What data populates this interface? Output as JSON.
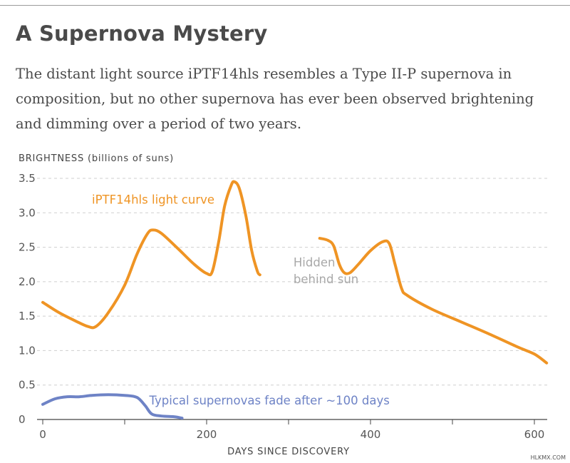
{
  "header": {
    "title": "A Supernova Mystery",
    "subtitle": "The distant light source iPTF14hls resembles a Type II-P supernova in composition, but no other supernova has ever been observed brightening and dimming over a period of two years."
  },
  "credit": "HLKMX.COM",
  "colors": {
    "orange": "#ef9424",
    "blue": "#6e83c6",
    "gray_annotation": "#a8a8a8",
    "axis": "#444444"
  },
  "chart_data": {
    "type": "line",
    "ylabel": "BRIGHTNESS (billions of suns)",
    "xlabel": "DAYS SINCE DISCOVERY",
    "xlim": [
      0,
      615
    ],
    "ylim": [
      0,
      3.5
    ],
    "xticks": [
      0,
      200,
      400,
      600
    ],
    "xminor": [
      100,
      300,
      500
    ],
    "yticks": [
      0,
      0.5,
      1.0,
      1.5,
      2.0,
      2.5,
      3.0,
      3.5
    ],
    "ytick_labels": [
      "0",
      "0.5",
      "1.0",
      "1.5",
      "2.0",
      "2.5",
      "3.0",
      "3.5"
    ],
    "grid": "horizontal-dashed",
    "series": [
      {
        "name": "iPTF14hls light curve",
        "color": "#ef9424",
        "segments": [
          [
            [
              0,
              1.7
            ],
            [
              20,
              1.55
            ],
            [
              40,
              1.43
            ],
            [
              55,
              1.35
            ],
            [
              65,
              1.35
            ],
            [
              80,
              1.55
            ],
            [
              100,
              1.95
            ],
            [
              115,
              2.4
            ],
            [
              128,
              2.7
            ],
            [
              135,
              2.75
            ],
            [
              145,
              2.7
            ],
            [
              165,
              2.48
            ],
            [
              185,
              2.25
            ],
            [
              200,
              2.12
            ],
            [
              207,
              2.15
            ],
            [
              215,
              2.6
            ],
            [
              222,
              3.1
            ],
            [
              230,
              3.4
            ],
            [
              234,
              3.45
            ],
            [
              240,
              3.35
            ],
            [
              248,
              2.95
            ],
            [
              255,
              2.45
            ],
            [
              262,
              2.15
            ],
            [
              265,
              2.1
            ]
          ],
          [
            [
              338,
              2.63
            ],
            [
              348,
              2.6
            ],
            [
              355,
              2.52
            ],
            [
              362,
              2.25
            ],
            [
              368,
              2.13
            ],
            [
              375,
              2.13
            ],
            [
              385,
              2.25
            ],
            [
              400,
              2.45
            ],
            [
              415,
              2.58
            ],
            [
              423,
              2.55
            ],
            [
              430,
              2.25
            ],
            [
              438,
              1.9
            ],
            [
              445,
              1.8
            ],
            [
              475,
              1.6
            ],
            [
              510,
              1.42
            ],
            [
              545,
              1.24
            ],
            [
              580,
              1.05
            ],
            [
              600,
              0.95
            ],
            [
              615,
              0.82
            ]
          ]
        ]
      },
      {
        "name": "Typical supernovas",
        "color": "#6e83c6",
        "segments": [
          [
            [
              0,
              0.22
            ],
            [
              15,
              0.3
            ],
            [
              30,
              0.33
            ],
            [
              45,
              0.33
            ],
            [
              60,
              0.35
            ],
            [
              80,
              0.36
            ],
            [
              100,
              0.35
            ],
            [
              115,
              0.32
            ],
            [
              125,
              0.2
            ],
            [
              133,
              0.08
            ],
            [
              145,
              0.05
            ],
            [
              160,
              0.04
            ],
            [
              170,
              0.02
            ]
          ]
        ]
      }
    ],
    "annotations": [
      {
        "text": "iPTF14hls light curve",
        "x": 60,
        "y": 3.13,
        "color": "#ef9424"
      },
      {
        "text": "Hidden",
        "x": 306,
        "y": 2.22,
        "color": "#a8a8a8"
      },
      {
        "text": "behind sun",
        "x": 306,
        "y": 1.98,
        "color": "#a8a8a8"
      },
      {
        "text": "Typical supernovas fade after ~100 days",
        "x": 130,
        "y": 0.22,
        "color": "#6e83c6"
      }
    ]
  }
}
